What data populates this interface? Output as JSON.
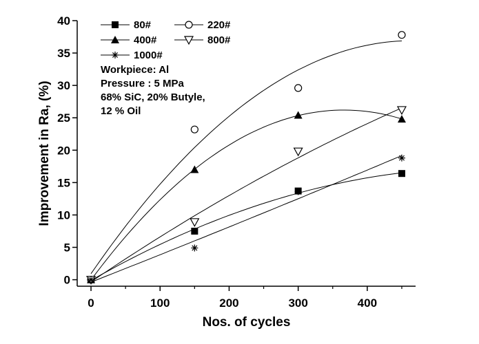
{
  "chart_data": {
    "type": "scatter",
    "title": "",
    "xlabel": "Nos. of cycles",
    "ylabel": "Improvement in Ra, (%)",
    "xlim": [
      -20,
      470
    ],
    "ylim": [
      -1,
      40
    ],
    "xticks": [
      0,
      100,
      200,
      300,
      400
    ],
    "yticks": [
      0,
      5,
      10,
      15,
      20,
      25,
      30,
      35,
      40
    ],
    "grid": false,
    "legend_position": "top-left",
    "trend_curves": true,
    "series": [
      {
        "name": "80#",
        "marker": "square-filled",
        "x": [
          0,
          150,
          300,
          450
        ],
        "y": [
          0,
          7.5,
          13.7,
          16.4
        ]
      },
      {
        "name": "220#",
        "marker": "circle-open",
        "x": [
          0,
          150,
          300,
          450
        ],
        "y": [
          0,
          23.2,
          29.6,
          37.8
        ]
      },
      {
        "name": "400#",
        "marker": "triangle-filled",
        "x": [
          0,
          150,
          300,
          450
        ],
        "y": [
          0,
          17.0,
          25.4,
          24.8
        ]
      },
      {
        "name": "800#",
        "marker": "triangle-down-open",
        "x": [
          0,
          150,
          300,
          450
        ],
        "y": [
          0,
          8.9,
          19.8,
          26.2
        ]
      },
      {
        "name": "1000#",
        "marker": "star",
        "x": [
          0,
          150,
          300,
          450
        ],
        "y": [
          0,
          4.9,
          13.6,
          18.8
        ]
      }
    ],
    "annotations": [
      "Workpiece: Al",
      "Pressure : 5 MPa",
      "68% SiC, 20% Butyle,",
      "12 % Oil"
    ]
  }
}
